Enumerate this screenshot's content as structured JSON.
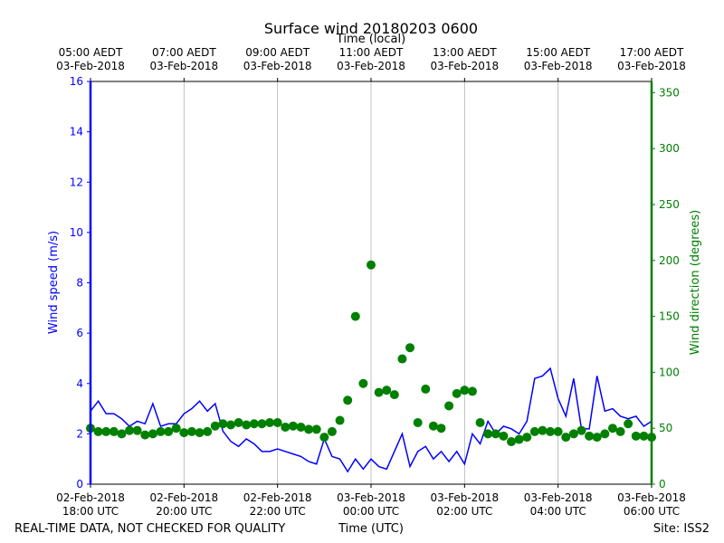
{
  "chart_data": {
    "type": "line",
    "title": "Surface wind 20180203 0600",
    "xlabel": "Time (UTC)",
    "x2label": "Time (local)",
    "ylabel": "Wind speed (m/s)",
    "y2label": "Wind direction (degrees)",
    "footer_left": "REAL-TIME DATA, NOT CHECKED FOR QUALITY",
    "footer_right": "Site: ISS2",
    "grid": true,
    "xlim": [
      "2018-02-02T18:00",
      "2018-02-03T06:00"
    ],
    "xticks": [
      {
        "value": "2018-02-02T18:00",
        "label": "02-Feb-2018\n18:00 UTC"
      },
      {
        "value": "2018-02-02T20:00",
        "label": "02-Feb-2018\n20:00 UTC"
      },
      {
        "value": "2018-02-02T22:00",
        "label": "02-Feb-2018\n22:00 UTC"
      },
      {
        "value": "2018-02-03T00:00",
        "label": "03-Feb-2018\n00:00 UTC"
      },
      {
        "value": "2018-02-03T02:00",
        "label": "03-Feb-2018\n02:00 UTC"
      },
      {
        "value": "2018-02-03T04:00",
        "label": "03-Feb-2018\n04:00 UTC"
      },
      {
        "value": "2018-02-03T06:00",
        "label": "03-Feb-2018\n06:00 UTC"
      }
    ],
    "x2ticks": [
      {
        "value": "2018-02-02T18:00",
        "label": "05:00 AEDT\n03-Feb-2018"
      },
      {
        "value": "2018-02-02T20:00",
        "label": "07:00 AEDT\n03-Feb-2018"
      },
      {
        "value": "2018-02-02T22:00",
        "label": "09:00 AEDT\n03-Feb-2018"
      },
      {
        "value": "2018-02-03T00:00",
        "label": "11:00 AEDT\n03-Feb-2018"
      },
      {
        "value": "2018-02-03T02:00",
        "label": "13:00 AEDT\n03-Feb-2018"
      },
      {
        "value": "2018-02-03T04:00",
        "label": "15:00 AEDT\n03-Feb-2018"
      },
      {
        "value": "2018-02-03T06:00",
        "label": "17:00 AEDT\n03-Feb-2018"
      }
    ],
    "ylim": [
      0,
      16
    ],
    "yticks": [
      0,
      2,
      4,
      6,
      8,
      10,
      12,
      14,
      16
    ],
    "y2lim": [
      0,
      360
    ],
    "y2ticks": [
      0,
      50,
      100,
      150,
      200,
      250,
      300,
      350
    ],
    "x": [
      "2018-02-02T18:00",
      "2018-02-02T18:10",
      "2018-02-02T18:20",
      "2018-02-02T18:30",
      "2018-02-02T18:40",
      "2018-02-02T18:50",
      "2018-02-02T19:00",
      "2018-02-02T19:10",
      "2018-02-02T19:20",
      "2018-02-02T19:30",
      "2018-02-02T19:40",
      "2018-02-02T19:50",
      "2018-02-02T20:00",
      "2018-02-02T20:10",
      "2018-02-02T20:20",
      "2018-02-02T20:30",
      "2018-02-02T20:40",
      "2018-02-02T20:50",
      "2018-02-02T21:00",
      "2018-02-02T21:10",
      "2018-02-02T21:20",
      "2018-02-02T21:30",
      "2018-02-02T21:40",
      "2018-02-02T21:50",
      "2018-02-02T22:00",
      "2018-02-02T22:10",
      "2018-02-02T22:20",
      "2018-02-02T22:30",
      "2018-02-02T22:40",
      "2018-02-02T22:50",
      "2018-02-02T23:00",
      "2018-02-02T23:10",
      "2018-02-02T23:20",
      "2018-02-02T23:30",
      "2018-02-02T23:40",
      "2018-02-02T23:50",
      "2018-02-03T00:00",
      "2018-02-03T00:10",
      "2018-02-03T00:20",
      "2018-02-03T00:30",
      "2018-02-03T00:40",
      "2018-02-03T00:50",
      "2018-02-03T01:00",
      "2018-02-03T01:10",
      "2018-02-03T01:20",
      "2018-02-03T01:30",
      "2018-02-03T01:40",
      "2018-02-03T01:50",
      "2018-02-03T02:00",
      "2018-02-03T02:10",
      "2018-02-03T02:20",
      "2018-02-03T02:30",
      "2018-02-03T02:40",
      "2018-02-03T02:50",
      "2018-02-03T03:00",
      "2018-02-03T03:10",
      "2018-02-03T03:20",
      "2018-02-03T03:30",
      "2018-02-03T03:40",
      "2018-02-03T03:50",
      "2018-02-03T04:00",
      "2018-02-03T04:10",
      "2018-02-03T04:20",
      "2018-02-03T04:30",
      "2018-02-03T04:40",
      "2018-02-03T04:50",
      "2018-02-03T05:00",
      "2018-02-03T05:10",
      "2018-02-03T05:20",
      "2018-02-03T05:30",
      "2018-02-03T05:40",
      "2018-02-03T05:50",
      "2018-02-03T06:00"
    ],
    "series": [
      {
        "type": "line",
        "color": "#0000ff",
        "values": [
          2.9,
          3.3,
          2.8,
          2.8,
          2.6,
          2.3,
          2.5,
          2.4,
          3.2,
          2.3,
          2.4,
          2.4,
          2.8,
          3.0,
          3.3,
          2.9,
          3.2,
          2.1,
          1.7,
          1.5,
          1.8,
          1.6,
          1.3,
          1.3,
          1.4,
          1.3,
          1.2,
          1.1,
          0.9,
          0.8,
          1.8,
          1.1,
          1.0,
          0.5,
          1.0,
          0.6,
          1.0,
          0.7,
          0.6,
          1.3,
          2.0,
          0.7,
          1.3,
          1.5,
          1.0,
          1.3,
          0.9,
          1.3,
          0.8,
          2.0,
          1.6,
          2.5,
          2.0,
          2.3,
          2.2,
          2.0,
          2.5,
          4.2,
          4.3,
          4.6,
          3.4,
          2.7,
          4.2,
          2.2,
          2.2,
          4.3,
          2.9,
          3.0,
          2.7,
          2.6,
          2.7,
          2.3,
          2.5
        ]
      },
      {
        "type": "scatter",
        "axis": "y2",
        "color": "#008000",
        "values": [
          50,
          47,
          47,
          47,
          45,
          48,
          48,
          44,
          45,
          47,
          47,
          50,
          46,
          47,
          46,
          47,
          52,
          54,
          53,
          55,
          53,
          54,
          54,
          55,
          55,
          51,
          52,
          51,
          49,
          49,
          42,
          47,
          57,
          75,
          150,
          90,
          196,
          82,
          84,
          80,
          112,
          122,
          55,
          85,
          52,
          50,
          70,
          81,
          84,
          83,
          55,
          45,
          45,
          43,
          38,
          40,
          42,
          47,
          48,
          47,
          47,
          42,
          45,
          48,
          43,
          42,
          45,
          50,
          47,
          54,
          43,
          43,
          42
        ]
      }
    ]
  }
}
